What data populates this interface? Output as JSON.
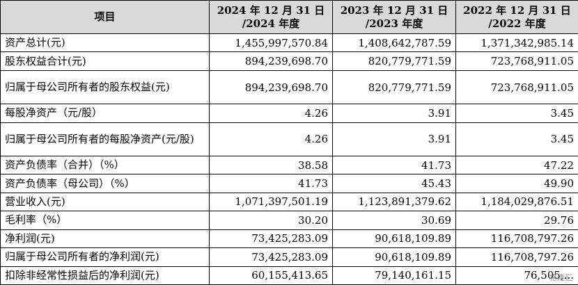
{
  "table": {
    "headers": [
      "项目",
      "2024 年 12 月 31 日\n/2024 年度",
      "2023 年 12 月 31 日\n/2023 年度",
      "2022 年 12 月 31 日\n/2022 年度"
    ],
    "rows": [
      {
        "label": "资产总计(元)",
        "values": [
          "1,455,997,570.84",
          "1,408,642,787.59",
          "1,371,342,985.14"
        ],
        "tall": false
      },
      {
        "label": "股东权益合计(元)",
        "values": [
          "894,239,698.70",
          "820,779,771.59",
          "723,768,911.05"
        ],
        "tall": false
      },
      {
        "label": "归属于母公司所有者的股东权益(元)",
        "values": [
          "894,239,698.70",
          "820,779,771.59",
          "723,768,911.05"
        ],
        "tall": true
      },
      {
        "label": "每股净资产（元/股）",
        "values": [
          "4.26",
          "3.91",
          "3.45"
        ],
        "tall": false
      },
      {
        "label": "归属于母公司所有者的每股净资产(元/股)",
        "values": [
          "4.26",
          "3.91",
          "3.45"
        ],
        "tall": true
      },
      {
        "label": "资产负债率（合并）（%）",
        "values": [
          "38.58",
          "41.73",
          "47.22"
        ],
        "tall": false
      },
      {
        "label": "资产负债率（母公司）（%）",
        "values": [
          "41.73",
          "45.43",
          "49.90"
        ],
        "tall": false
      },
      {
        "label": "营业收入(元)",
        "values": [
          "1,071,397,501.19",
          "1,123,891,379.62",
          "1,184,029,876.51"
        ],
        "tall": false
      },
      {
        "label": "毛利率（%）",
        "values": [
          "30.20",
          "30.69",
          "29.76"
        ],
        "tall": false
      },
      {
        "label": "净利润(元)",
        "values": [
          "73,425,283.09",
          "90,618,109.89",
          "116,708,797.26"
        ],
        "tall": false
      },
      {
        "label": "归属于母公司所有者的净利润(元)",
        "values": [
          "73,425,283.09",
          "90,618,109.89",
          "116,708,797.26"
        ],
        "tall": false
      },
      {
        "label": "扣除非经常性损益后的净利润(元)",
        "values": [
          "60,155,413.65",
          "79,140,161.15",
          "76,505,..."
        ],
        "tall": false
      }
    ]
  },
  "watermark": "格隆汇"
}
